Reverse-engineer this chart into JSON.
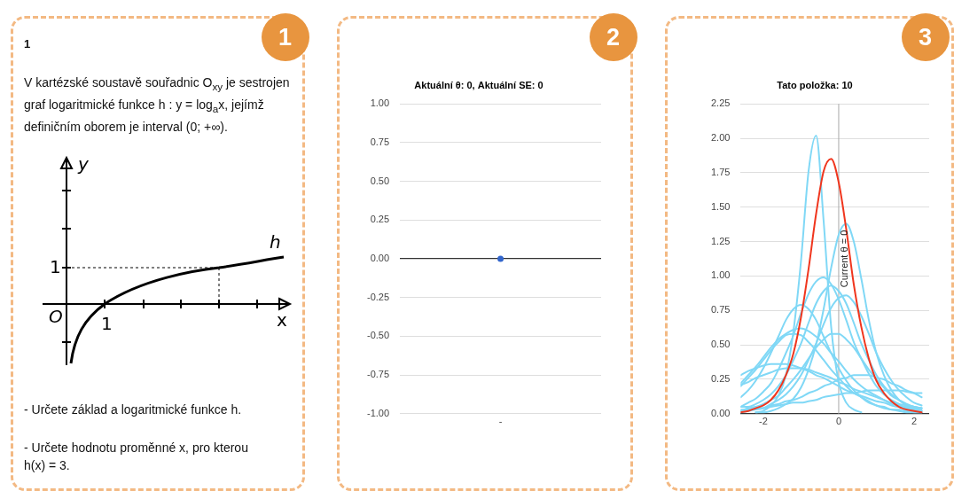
{
  "chart_data": [
    {
      "type": "other",
      "title": "1",
      "annotations": [
        "1",
        "V kartézské soustavě souřadnic O$_{xy}$ je sestrojen graf logaritmické funkce h : y = log$_{a}$x, jejímž definičním oborem je interval (0; +∞).",
        "y",
        "h",
        "1",
        "O",
        "1",
        "x",
        "- Určete základ a logaritmické funkce h.",
        "- Určete hodnotu proměnné x, pro kterou h(x) = 3."
      ]
    },
    {
      "type": "scatter",
      "title": "Aktuální θ: 0, Aktuální SE: 0",
      "categories": [
        "-"
      ],
      "values": [
        0
      ],
      "color": "#3366cc",
      "marker": "circle",
      "ylim": [
        -1,
        1
      ],
      "yticks": [
        {
          "value": -1,
          "label": "-1.00"
        },
        {
          "value": -0.75,
          "label": "-0.75"
        },
        {
          "value": -0.5,
          "label": "-0.50"
        },
        {
          "value": -0.25,
          "label": "-0.25"
        },
        {
          "value": 0,
          "label": "0.00"
        },
        {
          "value": 0.25,
          "label": "0.25"
        },
        {
          "value": 0.5,
          "label": "0.50"
        },
        {
          "value": 0.75,
          "label": "0.75"
        },
        {
          "value": 1,
          "label": "1.00"
        }
      ],
      "grid": "y",
      "annotations": [
        "2"
      ]
    },
    {
      "type": "line",
      "title": "Tato položka: 10",
      "x": [
        -2.6,
        -2.4,
        -2.2,
        -2.0,
        -1.8,
        -1.6,
        -1.4,
        -1.2,
        -1.0,
        -0.8,
        -0.6,
        -0.4,
        -0.2,
        0.0,
        0.2,
        0.4,
        0.6,
        0.8,
        1.0,
        1.2,
        1.4,
        1.6,
        1.8,
        2.0,
        2.2
      ],
      "xlim": [
        -2.6,
        2.4
      ],
      "xticks": [
        -2,
        0,
        2
      ],
      "ylim": [
        0,
        2.25
      ],
      "yticks": [
        {
          "value": 0,
          "label": "0.00"
        },
        {
          "value": 0.25,
          "label": "0.25"
        },
        {
          "value": 0.5,
          "label": "0.50"
        },
        {
          "value": 0.75,
          "label": "0.75"
        },
        {
          "value": 1,
          "label": "1.00"
        },
        {
          "value": 1.25,
          "label": "1.25"
        },
        {
          "value": 1.5,
          "label": "1.50"
        },
        {
          "value": 1.75,
          "label": "1.75"
        },
        {
          "value": 2,
          "label": "2.00"
        },
        {
          "value": 2.25,
          "label": "2.25"
        }
      ],
      "grid": "y",
      "ref_lines": [
        {
          "axis": "x",
          "value": 0,
          "label": "Current θ = 0"
        }
      ],
      "annotations": [
        "3"
      ],
      "series": [
        {
          "color": "#80d8f6",
          "values": [
            null,
            null,
            0.01,
            0.02,
            0.06,
            0.13,
            0.28,
            0.6,
            1.11,
            1.76,
            2.02,
            1.4,
            0.63,
            0.23,
            0.08,
            0.03,
            0.01,
            null,
            null,
            null,
            null,
            null,
            null,
            null,
            null
          ]
        },
        {
          "color": "#80d8f6",
          "values": [
            null,
            null,
            0.01,
            0.01,
            0.02,
            0.04,
            0.07,
            0.11,
            0.19,
            0.32,
            0.5,
            0.76,
            1.06,
            1.3,
            1.38,
            1.25,
            0.98,
            0.68,
            0.44,
            0.28,
            0.17,
            0.1,
            0.06,
            0.03,
            0.02
          ]
        },
        {
          "color": "#80d8f6",
          "values": [
            0.05,
            0.08,
            0.11,
            0.16,
            0.22,
            0.32,
            0.44,
            0.57,
            0.73,
            0.87,
            0.96,
            0.99,
            0.94,
            0.83,
            0.68,
            0.52,
            0.4,
            0.29,
            0.2,
            0.14,
            0.1,
            0.07,
            0.04,
            0.03,
            0.02
          ]
        },
        {
          "color": "#80d8f6",
          "values": [
            0.05,
            0.05,
            0.07,
            0.1,
            0.14,
            0.2,
            0.28,
            0.39,
            0.51,
            0.66,
            0.8,
            0.89,
            0.93,
            0.89,
            0.8,
            0.66,
            0.51,
            0.39,
            0.28,
            0.2,
            0.14,
            0.1,
            0.07,
            0.05,
            0.04
          ]
        },
        {
          "color": "#80d8f6",
          "values": [
            0.01,
            0.02,
            0.03,
            0.04,
            0.07,
            0.1,
            0.14,
            0.2,
            0.28,
            0.39,
            0.51,
            0.65,
            0.77,
            0.84,
            0.86,
            0.81,
            0.71,
            0.58,
            0.44,
            0.33,
            0.24,
            0.17,
            0.12,
            0.08,
            0.06
          ]
        },
        {
          "color": "#80d8f6",
          "values": [
            0.12,
            0.17,
            0.24,
            0.33,
            0.44,
            0.56,
            0.68,
            0.76,
            0.79,
            0.76,
            0.68,
            0.56,
            0.44,
            0.33,
            0.24,
            0.17,
            0.12,
            0.08,
            0.06,
            0.04,
            0.03,
            0.02,
            0.01,
            0.01,
            0.01
          ]
        },
        {
          "color": "#80d8f6",
          "values": [
            0.22,
            0.28,
            0.34,
            0.41,
            0.48,
            0.54,
            0.58,
            0.61,
            0.62,
            0.6,
            0.56,
            0.51,
            0.44,
            0.38,
            0.31,
            0.25,
            0.2,
            0.16,
            0.13,
            0.1,
            0.07,
            0.06,
            0.04,
            0.03,
            0.02
          ]
        },
        {
          "color": "#80d8f6",
          "values": [
            0.2,
            0.26,
            0.32,
            0.39,
            0.46,
            0.52,
            0.57,
            0.58,
            0.57,
            0.52,
            0.46,
            0.39,
            0.32,
            0.26,
            0.2,
            0.15,
            0.12,
            0.09,
            0.06,
            0.05,
            0.03,
            0.03,
            0.02,
            0.01,
            0.01
          ]
        },
        {
          "color": "#80d8f6",
          "values": [
            0.02,
            0.04,
            0.05,
            0.07,
            0.1,
            0.13,
            0.19,
            0.25,
            0.32,
            0.4,
            0.48,
            0.54,
            0.58,
            0.58,
            0.54,
            0.48,
            0.4,
            0.32,
            0.25,
            0.19,
            0.13,
            0.1,
            0.07,
            0.05,
            0.04
          ]
        },
        {
          "color": "#80d8f6",
          "values": [
            0.28,
            0.31,
            0.33,
            0.35,
            0.36,
            0.36,
            0.36,
            0.35,
            0.33,
            0.31,
            0.28,
            0.26,
            0.23,
            0.2,
            0.17,
            0.15,
            0.13,
            0.11,
            0.09,
            0.08,
            0.06,
            0.05,
            0.05,
            0.04,
            0.03
          ]
        },
        {
          "color": "#80d8f6",
          "values": [
            0.21,
            0.23,
            0.26,
            0.28,
            0.3,
            0.32,
            0.33,
            0.33,
            0.33,
            0.32,
            0.3,
            0.28,
            0.26,
            0.23,
            0.21,
            0.18,
            0.16,
            0.14,
            0.12,
            0.1,
            0.08,
            0.07,
            0.06,
            0.05,
            0.04
          ]
        },
        {
          "color": "#80d8f6",
          "values": [
            0.02,
            0.03,
            0.04,
            0.04,
            0.06,
            0.07,
            0.09,
            0.1,
            0.12,
            0.15,
            0.17,
            0.2,
            0.22,
            0.25,
            0.26,
            0.28,
            0.28,
            0.28,
            0.26,
            0.25,
            0.22,
            0.2,
            0.17,
            0.15,
            0.12
          ]
        },
        {
          "color": "#80d8f6",
          "values": [
            0.03,
            0.03,
            0.04,
            0.04,
            0.05,
            0.06,
            0.07,
            0.08,
            0.08,
            0.09,
            0.1,
            0.12,
            0.13,
            0.14,
            0.15,
            0.15,
            0.16,
            0.17,
            0.17,
            0.17,
            0.17,
            0.17,
            0.16,
            0.15,
            0.15
          ]
        },
        {
          "color": "#f0361e",
          "values": [
            0.01,
            0.02,
            0.04,
            0.06,
            0.1,
            0.17,
            0.28,
            0.44,
            0.7,
            1.05,
            1.45,
            1.76,
            1.85,
            1.68,
            1.34,
            0.94,
            0.63,
            0.4,
            0.24,
            0.15,
            0.09,
            0.05,
            0.03,
            0.02,
            0.01
          ]
        }
      ]
    }
  ]
}
